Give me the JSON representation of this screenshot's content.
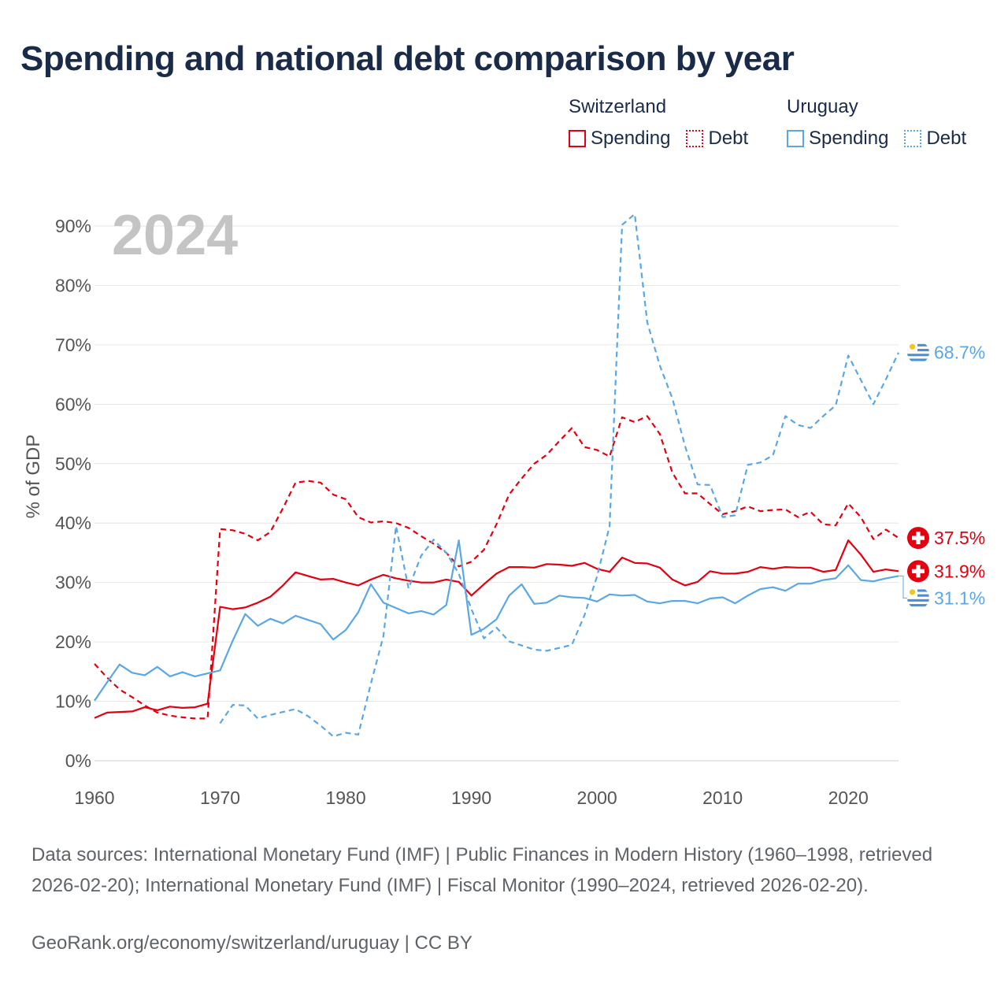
{
  "title": "Spending and national debt comparison by year",
  "legend": {
    "groups": [
      {
        "name": "Switzerland",
        "items": [
          {
            "label": "Spending",
            "style": "solid",
            "color": "#e3000f"
          },
          {
            "label": "Debt",
            "style": "dotted",
            "color": "#e3000f"
          }
        ]
      },
      {
        "name": "Uruguay",
        "items": [
          {
            "label": "Spending",
            "style": "solid",
            "color": "#5aa7e6"
          },
          {
            "label": "Debt",
            "style": "dotted",
            "color": "#5aa7e6"
          }
        ]
      }
    ]
  },
  "footer": {
    "sources": "Data sources: International Monetary Fund (IMF) | Public Finances in Modern History (1960–1998, retrieved 2026-02-20); International Monetary Fund (IMF) | Fiscal Monitor (1990–2024, retrieved 2026-02-20).",
    "site": "GeoRank.org/economy/switzerland/uruguay | CC BY"
  },
  "chart_data": {
    "type": "line",
    "year_label": "2024",
    "ylabel": "% of GDP",
    "xlim": [
      1960,
      2024
    ],
    "ylim": [
      0,
      90
    ],
    "x_ticks": [
      1960,
      1970,
      1980,
      1990,
      2000,
      2010,
      2020
    ],
    "y_ticks": [
      0,
      10,
      20,
      30,
      40,
      50,
      60,
      70,
      80,
      90
    ],
    "y_tick_labels": [
      "0%",
      "10%",
      "20%",
      "30%",
      "40%",
      "50%",
      "60%",
      "70%",
      "80%",
      "90%"
    ],
    "series": [
      {
        "name": "Switzerland Spending",
        "country": "Switzerland",
        "metric": "Spending",
        "color": "#e3000f",
        "dashed": false,
        "end_label": "31.9%",
        "points": [
          [
            1960,
            7.2
          ],
          [
            1961,
            8.1
          ],
          [
            1962,
            8.2
          ],
          [
            1963,
            8.3
          ],
          [
            1964,
            9.0
          ],
          [
            1965,
            8.5
          ],
          [
            1966,
            9.1
          ],
          [
            1967,
            8.9
          ],
          [
            1968,
            9.0
          ],
          [
            1969,
            9.6
          ],
          [
            1970,
            25.9
          ],
          [
            1971,
            25.5
          ],
          [
            1972,
            25.8
          ],
          [
            1973,
            26.6
          ],
          [
            1974,
            27.6
          ],
          [
            1975,
            29.5
          ],
          [
            1976,
            31.7
          ],
          [
            1977,
            31.1
          ],
          [
            1978,
            30.5
          ],
          [
            1979,
            30.6
          ],
          [
            1980,
            30.0
          ],
          [
            1981,
            29.5
          ],
          [
            1982,
            30.5
          ],
          [
            1983,
            31.3
          ],
          [
            1984,
            30.7
          ],
          [
            1985,
            30.3
          ],
          [
            1986,
            30.0
          ],
          [
            1987,
            30.0
          ],
          [
            1988,
            30.5
          ],
          [
            1989,
            30.1
          ],
          [
            1990,
            27.8
          ],
          [
            1991,
            29.7
          ],
          [
            1992,
            31.5
          ],
          [
            1993,
            32.6
          ],
          [
            1994,
            32.6
          ],
          [
            1995,
            32.5
          ],
          [
            1996,
            33.1
          ],
          [
            1997,
            33.0
          ],
          [
            1998,
            32.8
          ],
          [
            1999,
            33.3
          ],
          [
            2000,
            32.3
          ],
          [
            2001,
            31.8
          ],
          [
            2002,
            34.2
          ],
          [
            2003,
            33.3
          ],
          [
            2004,
            33.2
          ],
          [
            2005,
            32.5
          ],
          [
            2006,
            30.5
          ],
          [
            2007,
            29.5
          ],
          [
            2008,
            30.1
          ],
          [
            2009,
            31.9
          ],
          [
            2010,
            31.5
          ],
          [
            2011,
            31.5
          ],
          [
            2012,
            31.8
          ],
          [
            2013,
            32.6
          ],
          [
            2014,
            32.3
          ],
          [
            2015,
            32.6
          ],
          [
            2016,
            32.5
          ],
          [
            2017,
            32.5
          ],
          [
            2018,
            31.8
          ],
          [
            2019,
            32.1
          ],
          [
            2020,
            37.1
          ],
          [
            2021,
            34.7
          ],
          [
            2022,
            31.8
          ],
          [
            2023,
            32.2
          ],
          [
            2024,
            31.9
          ]
        ]
      },
      {
        "name": "Switzerland Debt",
        "country": "Switzerland",
        "metric": "Debt",
        "color": "#e3000f",
        "dashed": true,
        "end_label": "37.5%",
        "points": [
          [
            1960,
            16.3
          ],
          [
            1961,
            14.0
          ],
          [
            1962,
            12.0
          ],
          [
            1963,
            10.7
          ],
          [
            1964,
            9.3
          ],
          [
            1965,
            8.1
          ],
          [
            1966,
            7.6
          ],
          [
            1967,
            7.3
          ],
          [
            1968,
            7.1
          ],
          [
            1969,
            7.1
          ],
          [
            1970,
            39.0
          ],
          [
            1971,
            38.8
          ],
          [
            1972,
            38.2
          ],
          [
            1973,
            37.1
          ],
          [
            1974,
            38.5
          ],
          [
            1975,
            42.5
          ],
          [
            1976,
            46.8
          ],
          [
            1977,
            47.1
          ],
          [
            1978,
            46.8
          ],
          [
            1979,
            44.8
          ],
          [
            1980,
            44.0
          ],
          [
            1981,
            41.0
          ],
          [
            1982,
            40.1
          ],
          [
            1983,
            40.3
          ],
          [
            1984,
            40.0
          ],
          [
            1985,
            39.2
          ],
          [
            1986,
            37.8
          ],
          [
            1987,
            36.5
          ],
          [
            1988,
            35.0
          ],
          [
            1989,
            32.7
          ],
          [
            1990,
            33.5
          ],
          [
            1991,
            35.5
          ],
          [
            1992,
            39.8
          ],
          [
            1993,
            44.8
          ],
          [
            1994,
            47.5
          ],
          [
            1995,
            50.0
          ],
          [
            1996,
            51.5
          ],
          [
            1997,
            53.8
          ],
          [
            1998,
            56.0
          ],
          [
            1999,
            52.8
          ],
          [
            2000,
            52.3
          ],
          [
            2001,
            51.2
          ],
          [
            2002,
            57.8
          ],
          [
            2003,
            57.0
          ],
          [
            2004,
            58.0
          ],
          [
            2005,
            55.0
          ],
          [
            2006,
            48.5
          ],
          [
            2007,
            45.0
          ],
          [
            2008,
            45.0
          ],
          [
            2009,
            43.2
          ],
          [
            2010,
            41.5
          ],
          [
            2011,
            42.0
          ],
          [
            2012,
            42.8
          ],
          [
            2013,
            42.0
          ],
          [
            2014,
            42.2
          ],
          [
            2015,
            42.3
          ],
          [
            2016,
            41.0
          ],
          [
            2017,
            41.9
          ],
          [
            2018,
            39.8
          ],
          [
            2019,
            39.6
          ],
          [
            2020,
            43.3
          ],
          [
            2021,
            41.0
          ],
          [
            2022,
            37.3
          ],
          [
            2023,
            38.9
          ],
          [
            2024,
            37.5
          ]
        ]
      },
      {
        "name": "Uruguay Spending",
        "country": "Uruguay",
        "metric": "Spending",
        "color": "#5aa7e6",
        "dashed": false,
        "end_label": "31.1%",
        "points": [
          [
            1960,
            10.1
          ],
          [
            1961,
            13.2
          ],
          [
            1962,
            16.2
          ],
          [
            1963,
            14.8
          ],
          [
            1964,
            14.4
          ],
          [
            1965,
            15.8
          ],
          [
            1966,
            14.2
          ],
          [
            1967,
            14.9
          ],
          [
            1968,
            14.2
          ],
          [
            1969,
            14.7
          ],
          [
            1970,
            15.2
          ],
          [
            1971,
            20.2
          ],
          [
            1972,
            24.7
          ],
          [
            1973,
            22.7
          ],
          [
            1974,
            23.9
          ],
          [
            1975,
            23.1
          ],
          [
            1976,
            24.4
          ],
          [
            1977,
            23.7
          ],
          [
            1978,
            23.0
          ],
          [
            1979,
            20.4
          ],
          [
            1980,
            22.0
          ],
          [
            1981,
            25.0
          ],
          [
            1982,
            29.7
          ],
          [
            1983,
            26.6
          ],
          [
            1984,
            25.7
          ],
          [
            1985,
            24.8
          ],
          [
            1986,
            25.2
          ],
          [
            1987,
            24.6
          ],
          [
            1988,
            26.2
          ],
          [
            1989,
            37.1
          ],
          [
            1990,
            21.2
          ],
          [
            1991,
            22.2
          ],
          [
            1992,
            23.8
          ],
          [
            1993,
            27.8
          ],
          [
            1994,
            29.7
          ],
          [
            1995,
            26.4
          ],
          [
            1996,
            26.6
          ],
          [
            1997,
            27.8
          ],
          [
            1998,
            27.5
          ],
          [
            1999,
            27.4
          ],
          [
            2000,
            26.8
          ],
          [
            2001,
            28.0
          ],
          [
            2002,
            27.8
          ],
          [
            2003,
            27.9
          ],
          [
            2004,
            26.8
          ],
          [
            2005,
            26.5
          ],
          [
            2006,
            26.9
          ],
          [
            2007,
            26.9
          ],
          [
            2008,
            26.5
          ],
          [
            2009,
            27.3
          ],
          [
            2010,
            27.5
          ],
          [
            2011,
            26.5
          ],
          [
            2012,
            27.8
          ],
          [
            2013,
            28.9
          ],
          [
            2014,
            29.2
          ],
          [
            2015,
            28.6
          ],
          [
            2016,
            29.8
          ],
          [
            2017,
            29.8
          ],
          [
            2018,
            30.4
          ],
          [
            2019,
            30.7
          ],
          [
            2020,
            32.9
          ],
          [
            2021,
            30.4
          ],
          [
            2022,
            30.2
          ],
          [
            2023,
            30.7
          ],
          [
            2024,
            31.1
          ]
        ]
      },
      {
        "name": "Uruguay Debt",
        "country": "Uruguay",
        "metric": "Debt",
        "color": "#5aa7e6",
        "dashed": true,
        "end_label": "68.7%",
        "points": [
          [
            1970,
            6.3
          ],
          [
            1971,
            9.4
          ],
          [
            1972,
            9.3
          ],
          [
            1973,
            7.1
          ],
          [
            1974,
            7.7
          ],
          [
            1975,
            8.2
          ],
          [
            1976,
            8.7
          ],
          [
            1977,
            7.5
          ],
          [
            1978,
            5.9
          ],
          [
            1979,
            4.1
          ],
          [
            1980,
            4.7
          ],
          [
            1981,
            4.4
          ],
          [
            1982,
            13.0
          ],
          [
            1983,
            21.0
          ],
          [
            1984,
            39.5
          ],
          [
            1985,
            29.0
          ],
          [
            1986,
            34.5
          ],
          [
            1987,
            37.2
          ],
          [
            1988,
            35.0
          ],
          [
            1989,
            31.5
          ],
          [
            1990,
            25.5
          ],
          [
            1991,
            20.6
          ],
          [
            1992,
            22.4
          ],
          [
            1993,
            20.1
          ],
          [
            1994,
            19.4
          ],
          [
            1995,
            18.7
          ],
          [
            1996,
            18.5
          ],
          [
            1997,
            19.0
          ],
          [
            1998,
            19.5
          ],
          [
            1999,
            24.5
          ],
          [
            2000,
            31.0
          ],
          [
            2001,
            39.5
          ],
          [
            2002,
            90.2
          ],
          [
            2003,
            92.0
          ],
          [
            2004,
            73.8
          ],
          [
            2005,
            66.5
          ],
          [
            2006,
            61.0
          ],
          [
            2007,
            53.0
          ],
          [
            2008,
            46.5
          ],
          [
            2009,
            46.4
          ],
          [
            2010,
            41.0
          ],
          [
            2011,
            41.3
          ],
          [
            2012,
            49.8
          ],
          [
            2013,
            50.2
          ],
          [
            2014,
            51.4
          ],
          [
            2015,
            58.0
          ],
          [
            2016,
            56.5
          ],
          [
            2017,
            56.0
          ],
          [
            2018,
            58.0
          ],
          [
            2019,
            59.8
          ],
          [
            2020,
            68.2
          ],
          [
            2021,
            64.1
          ],
          [
            2022,
            60.0
          ],
          [
            2023,
            64.2
          ],
          [
            2024,
            68.7
          ]
        ]
      }
    ]
  }
}
